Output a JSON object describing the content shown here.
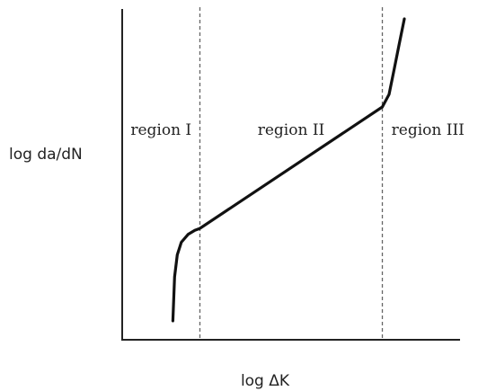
{
  "chart_data": {
    "type": "line",
    "xlabel": "log ΔK",
    "ylabel": "log da/dN",
    "xlim": [
      0,
      100
    ],
    "ylim": [
      0,
      100
    ],
    "grid": false,
    "region_boundaries": [
      23,
      77
    ],
    "regions": [
      {
        "label": "region I",
        "x_center": 11.5
      },
      {
        "label": "region II",
        "x_center": 50
      },
      {
        "label": "region III",
        "x_center": 90.5
      }
    ],
    "series": [
      {
        "x": [
          15,
          15.5,
          16.3,
          17.5,
          19.5,
          21.5,
          23,
          77,
          79,
          80.5,
          82,
          83.5
        ],
        "y": [
          6,
          20,
          27,
          31,
          33.5,
          34.8,
          35.4,
          74,
          78,
          86,
          94,
          102
        ]
      }
    ]
  }
}
